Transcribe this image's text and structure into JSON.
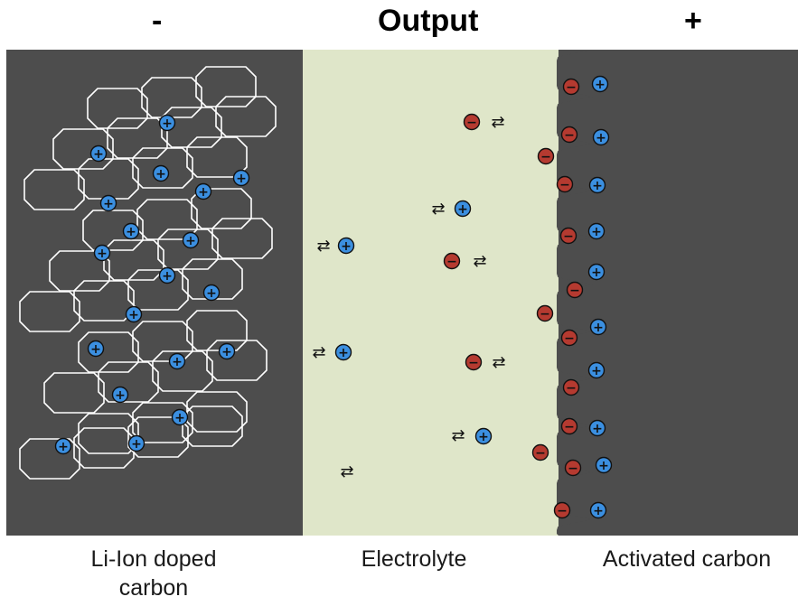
{
  "header": {
    "title": "Output",
    "negative_terminal": "-",
    "positive_terminal": "+"
  },
  "regions": {
    "left_label_line1": "Li-Ion doped",
    "left_label_line2": "carbon",
    "middle_label": "Electrolyte",
    "right_label": "Activated carbon"
  },
  "colors": {
    "electrode": "#4d4d4d",
    "electrolyte": "#dfe6c9",
    "cation": "#3b8fe0",
    "anion": "#b53a30",
    "lattice": "#ffffff"
  },
  "symbols": {
    "cation_sign": "+",
    "anion_sign": "−",
    "equilibrium": "⇄"
  }
}
